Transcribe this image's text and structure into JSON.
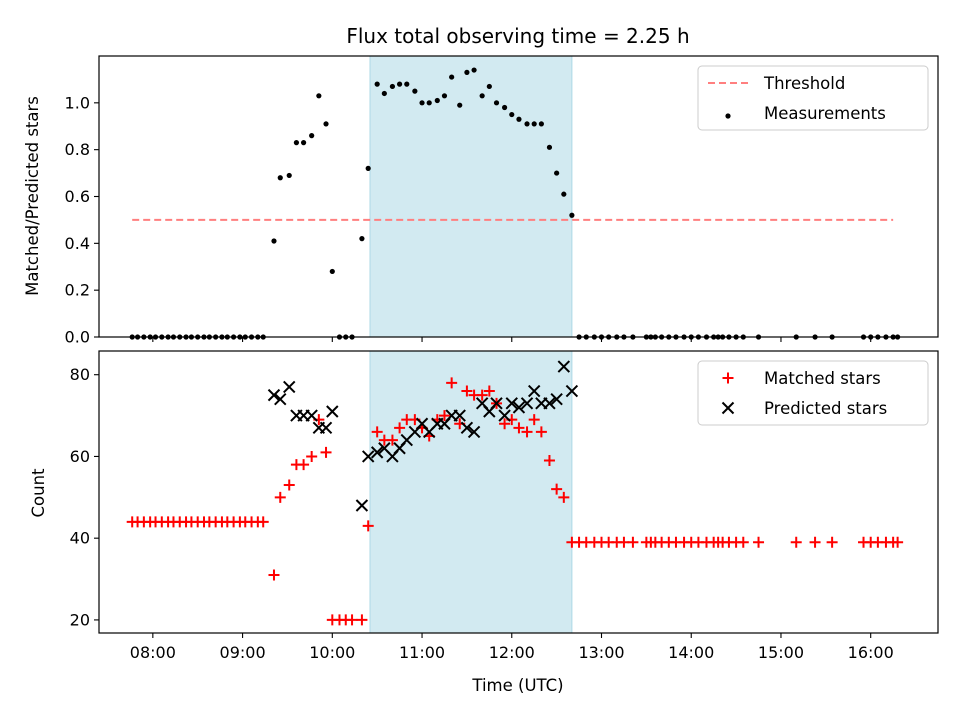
{
  "figure": {
    "title": "Flux total observing time = 2.25 h",
    "xlabel": "Time (UTC)"
  },
  "colors": {
    "shade": "#add8e6",
    "threshold": "#ff7f7f",
    "measurement": "#000000",
    "matched": "#ff0000",
    "predicted": "#000000"
  },
  "chart_data": [
    {
      "type": "scatter",
      "x_unit": "hours UTC",
      "xlim": [
        7.4,
        16.75
      ],
      "ylim": [
        0,
        1.2
      ],
      "ylabel": "Matched/Predicted stars",
      "yticks": [
        0.0,
        0.2,
        0.4,
        0.6,
        0.8,
        1.0
      ],
      "yticklabels": [
        "0.0",
        "0.2",
        "0.4",
        "0.6",
        "0.8",
        "1.0"
      ],
      "shaded_interval": [
        10.42,
        12.67
      ],
      "legend": {
        "position": "top-right",
        "entries": [
          "Threshold",
          "Measurements"
        ]
      },
      "threshold": {
        "name": "Threshold",
        "y": 0.5,
        "x_range": [
          7.77,
          16.25
        ],
        "style": "dashed"
      },
      "series": [
        {
          "name": "Measurements",
          "marker": "dot",
          "x": [
            7.77,
            7.83,
            7.9,
            7.97,
            8.03,
            8.1,
            8.17,
            8.23,
            8.3,
            8.37,
            8.43,
            8.5,
            8.57,
            8.63,
            8.7,
            8.77,
            8.83,
            8.9,
            8.97,
            9.03,
            9.1,
            9.17,
            9.23,
            9.35,
            9.42,
            9.52,
            9.6,
            9.68,
            9.77,
            9.85,
            9.93,
            10.0,
            10.08,
            10.15,
            10.22,
            10.33,
            10.4,
            10.5,
            10.58,
            10.67,
            10.75,
            10.83,
            10.92,
            11.0,
            11.08,
            11.17,
            11.25,
            11.33,
            11.42,
            11.5,
            11.58,
            11.67,
            11.75,
            11.83,
            11.92,
            12.0,
            12.08,
            12.17,
            12.25,
            12.33,
            12.42,
            12.5,
            12.58,
            12.67,
            12.75,
            12.83,
            12.92,
            13.0,
            13.08,
            13.17,
            13.25,
            13.35,
            13.5,
            13.55,
            13.6,
            13.67,
            13.75,
            13.83,
            13.92,
            14.0,
            14.08,
            14.17,
            14.25,
            14.3,
            14.35,
            14.42,
            14.5,
            14.58,
            14.75,
            15.17,
            15.38,
            15.57,
            15.92,
            16.0,
            16.08,
            16.17,
            16.25,
            16.3
          ],
          "y": [
            0,
            0,
            0,
            0,
            0,
            0,
            0,
            0,
            0,
            0,
            0,
            0,
            0,
            0,
            0,
            0,
            0,
            0,
            0,
            0,
            0,
            0,
            0,
            0.41,
            0.68,
            0.69,
            0.83,
            0.83,
            0.86,
            1.03,
            0.91,
            0.28,
            0,
            0,
            0,
            0.42,
            0.72,
            1.08,
            1.04,
            1.07,
            1.08,
            1.08,
            1.05,
            1.0,
            1.0,
            1.01,
            1.03,
            1.11,
            0.99,
            1.13,
            1.14,
            1.03,
            1.07,
            1.0,
            0.98,
            0.95,
            0.93,
            0.91,
            0.91,
            0.91,
            0.81,
            0.7,
            0.61,
            0.52,
            0,
            0,
            0,
            0,
            0,
            0,
            0,
            0,
            0,
            0,
            0,
            0,
            0,
            0,
            0,
            0,
            0,
            0,
            0,
            0,
            0,
            0,
            0,
            0,
            0,
            0,
            0,
            0,
            0,
            0,
            0,
            0,
            0,
            0
          ]
        }
      ]
    },
    {
      "type": "scatter",
      "x_unit": "hours UTC",
      "xlim": [
        7.4,
        16.75
      ],
      "ylim": [
        16.8,
        85.8
      ],
      "ylabel": "Count",
      "yticks": [
        20,
        40,
        60,
        80
      ],
      "yticklabels": [
        "20",
        "40",
        "60",
        "80"
      ],
      "xticks": [
        8,
        9,
        10,
        11,
        12,
        13,
        14,
        15,
        16
      ],
      "xticklabels": [
        "08:00",
        "09:00",
        "10:00",
        "11:00",
        "12:00",
        "13:00",
        "14:00",
        "15:00",
        "16:00"
      ],
      "shaded_interval": [
        10.42,
        12.67
      ],
      "legend": {
        "position": "top-right",
        "entries": [
          "Matched stars",
          "Predicted stars"
        ]
      },
      "series": [
        {
          "name": "Matched stars",
          "marker": "plus",
          "x": [
            7.77,
            7.83,
            7.9,
            7.97,
            8.03,
            8.1,
            8.17,
            8.23,
            8.3,
            8.37,
            8.43,
            8.5,
            8.57,
            8.63,
            8.7,
            8.77,
            8.83,
            8.9,
            8.97,
            9.03,
            9.1,
            9.17,
            9.23,
            9.35,
            9.42,
            9.52,
            9.6,
            9.68,
            9.77,
            9.85,
            9.93,
            10.0,
            10.08,
            10.15,
            10.22,
            10.33,
            10.4,
            10.5,
            10.58,
            10.67,
            10.75,
            10.83,
            10.92,
            11.0,
            11.08,
            11.17,
            11.25,
            11.33,
            11.42,
            11.5,
            11.58,
            11.67,
            11.75,
            11.83,
            11.92,
            12.0,
            12.08,
            12.17,
            12.25,
            12.33,
            12.42,
            12.5,
            12.58,
            12.67,
            12.75,
            12.83,
            12.92,
            13.0,
            13.08,
            13.17,
            13.25,
            13.35,
            13.5,
            13.55,
            13.6,
            13.67,
            13.75,
            13.83,
            13.92,
            14.0,
            14.08,
            14.17,
            14.25,
            14.3,
            14.35,
            14.42,
            14.5,
            14.58,
            14.75,
            15.17,
            15.38,
            15.57,
            15.92,
            16.0,
            16.08,
            16.17,
            16.25,
            16.3
          ],
          "y": [
            44,
            44,
            44,
            44,
            44,
            44,
            44,
            44,
            44,
            44,
            44,
            44,
            44,
            44,
            44,
            44,
            44,
            44,
            44,
            44,
            44,
            44,
            44,
            31,
            50,
            53,
            58,
            58,
            60,
            69,
            61,
            20,
            20,
            20,
            20,
            20,
            43,
            66,
            64,
            64,
            67,
            69,
            69,
            67,
            65,
            69,
            70,
            78,
            68,
            76,
            75,
            75,
            76,
            73,
            68,
            69,
            67,
            66,
            69,
            66,
            59,
            52,
            50,
            39,
            39,
            39,
            39,
            39,
            39,
            39,
            39,
            39,
            39,
            39,
            39,
            39,
            39,
            39,
            39,
            39,
            39,
            39,
            39,
            39,
            39,
            39,
            39,
            39,
            39,
            39,
            39,
            39,
            39,
            39,
            39,
            39,
            39,
            39
          ]
        },
        {
          "name": "Predicted stars",
          "marker": "x",
          "x": [
            9.35,
            9.42,
            9.52,
            9.6,
            9.68,
            9.77,
            9.85,
            9.93,
            10.0,
            10.33,
            10.4,
            10.5,
            10.58,
            10.67,
            10.75,
            10.83,
            10.92,
            11.0,
            11.08,
            11.17,
            11.25,
            11.33,
            11.42,
            11.5,
            11.58,
            11.67,
            11.75,
            11.83,
            11.92,
            12.0,
            12.08,
            12.17,
            12.25,
            12.33,
            12.42,
            12.5,
            12.58,
            12.67
          ],
          "y": [
            75,
            74,
            77,
            70,
            70,
            70,
            67,
            67,
            71,
            48,
            60,
            61,
            62,
            60,
            62,
            64,
            66,
            68,
            66,
            68,
            68,
            70,
            70,
            67,
            66,
            73,
            71,
            73,
            70,
            73,
            72,
            73,
            76,
            73,
            73,
            74,
            82,
            76
          ]
        }
      ]
    }
  ]
}
